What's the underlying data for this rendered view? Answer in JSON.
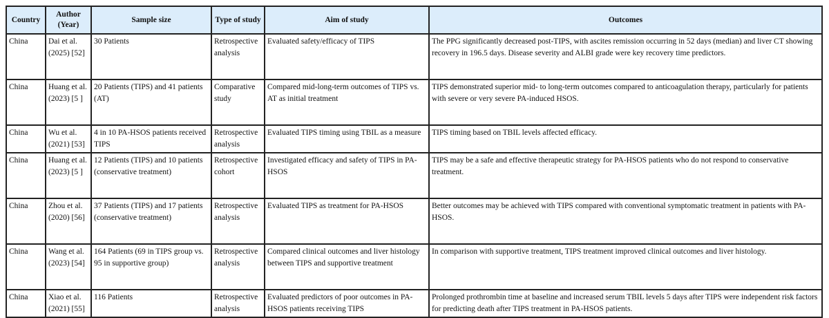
{
  "headers": [
    "Country",
    "Author (Year)",
    "Sample size",
    "Type of study",
    "Aim of study",
    "Outcomes"
  ],
  "rows": [
    [
      "China",
      "Dai et al. (2025) [52]",
      "30 Patients",
      "Retrospective analysis",
      "Evaluated safety/efficacy of TIPS",
      "The PPG significantly decreased post-TIPS, with ascites remission occurring in 52 days (median) and liver CT showing recovery in 196.5 days. Disease severity and ALBI grade were key recovery time predictors."
    ],
    [
      "China",
      "Huang et al. (2023) [5 ]",
      "20 Patients (TIPS) and 41 patients (AT)",
      "Comparative study",
      "Compared mid-long-term outcomes of TIPS vs. AT as initial treatment",
      "TIPS demonstrated superior mid- to long-term outcomes compared to anticoagulation therapy, particularly for patients with severe or very severe PA-induced HSOS."
    ],
    [
      "China",
      "Wu et al. (2021) [53]",
      "4 in 10 PA-HSOS patients received TIPS",
      "Retrospective analysis",
      "Evaluated TIPS timing using TBIL as a measure",
      "TIPS timing based on TBIL levels affected efficacy."
    ],
    [
      "China",
      "Huang et al. (2023) [5 ]",
      "12 Patients (TIPS) and 10 patients (conservative treatment)",
      "Retrospective cohort",
      "Investigated efficacy and safety of TIPS in PA-HSOS",
      "TIPS may be a safe and effective therapeutic strategy for PA-HSOS patients who do not respond to conservative treatment."
    ],
    [
      "China",
      "Zhou et al. (2020) [56]",
      "37 Patients (TIPS) and 17 patients (conservative treatment)",
      "Retrospective analysis",
      "Evaluated TIPS as treatment for PA-HSOS",
      "Better outcomes may be achieved with TIPS compared with conventional symptomatic treatment in patients with PA-HSOS."
    ],
    [
      "China",
      "Wang et al. (2023) [54]",
      "164 Patients (69 in TIPS group vs. 95 in supportive group)",
      "Retrospective analysis",
      "Compared clinical outcomes and liver histology between TIPS and supportive treatment",
      "In comparison with supportive treatment, TIPS treatment improved clinical outcomes and liver histology."
    ],
    [
      "China",
      "Xiao et al. (2021) [55]",
      "116 Patients",
      "Retrospective analysis",
      "Evaluated predictors of poor outcomes in PA-HSOS patients receiving TIPS",
      "Prolonged prothrombin time at baseline and increased serum TBIL levels 5 days after TIPS were independent risk factors for predicting death after TIPS treatment in PA-HSOS patients."
    ]
  ]
}
